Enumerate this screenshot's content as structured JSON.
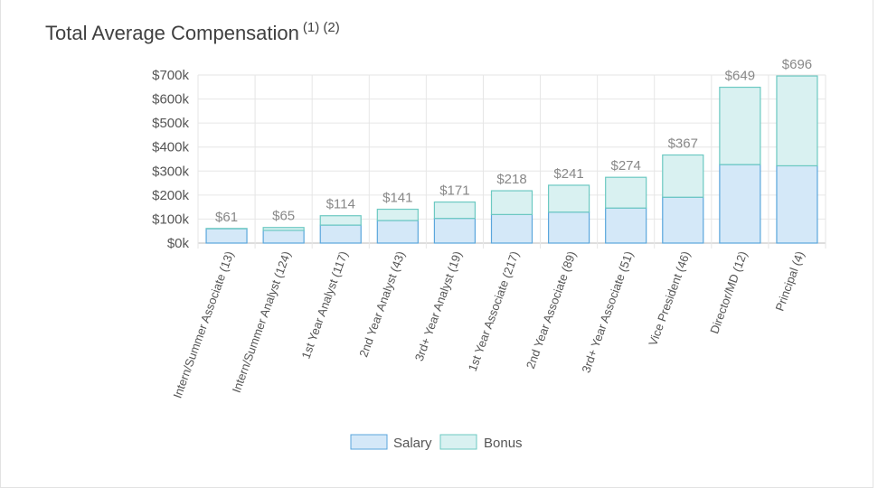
{
  "title": "Total Average Compensation",
  "title_notes": "(1) (2)",
  "chart_data": {
    "type": "bar",
    "stacked": true,
    "categories": [
      "Intern/Summer Associate (13)",
      "Intern/Summer Analyst (124)",
      "1st Year Analyst (117)",
      "2nd Year Analyst (43)",
      "3rd+ Year Analyst (19)",
      "1st Year Associate (217)",
      "2nd Year Associate (89)",
      "3rd+ Year Associate (51)",
      "Vice President (46)",
      "Director/MD (12)",
      "Principal (4)"
    ],
    "series": [
      {
        "name": "Salary",
        "values": [
          60,
          53,
          75,
          94,
          103,
          119,
          129,
          146,
          191,
          327,
          322
        ],
        "fill": "#d4e8f8",
        "stroke": "#5aa6dc"
      },
      {
        "name": "Bonus",
        "values": [
          1,
          12,
          39,
          47,
          68,
          99,
          112,
          128,
          176,
          322,
          374
        ],
        "fill": "#d9f1f1",
        "stroke": "#6cc9c2"
      }
    ],
    "totals": [
      "$61",
      "$65",
      "$114",
      "$141",
      "$171",
      "$218",
      "$241",
      "$274",
      "$367",
      "$649",
      "$696"
    ],
    "ylim": [
      0,
      700
    ],
    "yticks": [
      "$0k",
      "$100k",
      "$200k",
      "$300k",
      "$400k",
      "$500k",
      "$600k",
      "$700k"
    ],
    "grid": true,
    "legend": "bottom",
    "xlabel": "",
    "ylabel": ""
  }
}
